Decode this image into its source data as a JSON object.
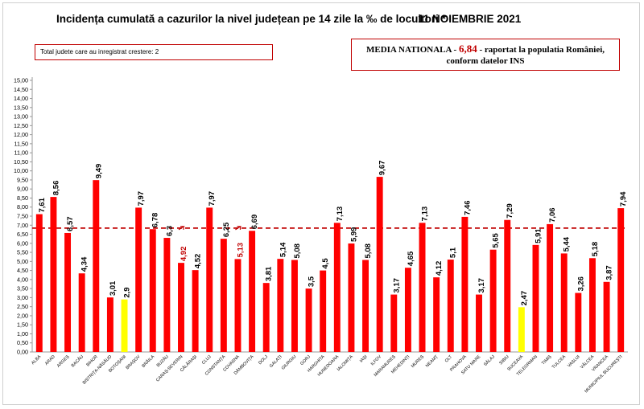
{
  "header": {
    "title": "Incidența cumulată a cazurilor la nivel județean pe 14 zile la ‰ de locuitori *",
    "date": "11 NOIEMBRIE 2021"
  },
  "growth_box": {
    "text": "Total judete care au inregistrat crestere: 2"
  },
  "media_box": {
    "prefix": "MEDIA NATIONALA -",
    "value": "6,84",
    "suffix": "- raportat la populatia României,",
    "line2": "conform datelor INS"
  },
  "colors": {
    "bar": "#ff0000",
    "highlight_bar": "#ffff00",
    "growth_label": "#c00000",
    "reference_line": "#c00000"
  },
  "chart_data": {
    "type": "bar",
    "ylim": [
      0,
      15
    ],
    "ytick_step": 0.5,
    "grid": false,
    "reference_line": 6.84,
    "categories": [
      "ALBA",
      "ARAD",
      "ARGEȘ",
      "BACĂU",
      "BIHOR",
      "BISTRIȚA-NĂSĂUD",
      "BOTOȘANI",
      "BRAȘOV",
      "BRĂILA",
      "BUZĂU",
      "CARAȘ-SEVERIN",
      "CĂLĂRAȘI",
      "CLUJ",
      "CONSTANȚA",
      "COVASNA",
      "DÂMBOVIȚA",
      "DOLJ",
      "GALAȚI",
      "GIURGIU",
      "GORJ",
      "HARGHITA",
      "HUNEDOARA",
      "IALOMIȚA",
      "IAȘI",
      "ILFOV",
      "MARAMUREȘ",
      "MEHEDINȚI",
      "MUREȘ",
      "NEAMȚ",
      "OLT",
      "PRAHOVA",
      "SATU MARE",
      "SĂLAJ",
      "SIBIU",
      "SUCEAVA",
      "TELEORMAN",
      "TIMIȘ",
      "TULCEA",
      "VASLUI",
      "VÂLCEA",
      "VRANCEA",
      "MUNICIPIUL BUCUREȘTI"
    ],
    "values": [
      7.61,
      8.56,
      6.57,
      4.34,
      9.49,
      3.01,
      2.9,
      7.97,
      6.78,
      6.3,
      4.92,
      4.52,
      7.97,
      6.25,
      5.13,
      6.69,
      3.81,
      5.14,
      5.08,
      3.5,
      4.5,
      7.13,
      5.99,
      5.08,
      9.67,
      3.17,
      4.65,
      7.13,
      4.12,
      5.1,
      7.46,
      3.17,
      5.65,
      7.29,
      2.47,
      5.91,
      7.06,
      5.44,
      3.26,
      5.18,
      3.87,
      7.94
    ],
    "labels": [
      "7,61",
      "8,56",
      "6,57",
      "4,34",
      "9,49",
      "3,01",
      "2,9",
      "7,97",
      "6,78",
      "6,3",
      "4,92",
      "4,52",
      "7,97",
      "6,25",
      "5,13",
      "6,69",
      "3,81",
      "5,14",
      "5,08",
      "3,5",
      "4,5",
      "7,13",
      "5,99",
      "5,08",
      "9,67",
      "3,17",
      "4,65",
      "7,13",
      "4,12",
      "5,1",
      "7,46",
      "3,17",
      "5,65",
      "7,29",
      "2,47",
      "5,91",
      "7,06",
      "5,44",
      "3,26",
      "5,18",
      "3,87",
      "7,94"
    ],
    "highlight": [
      "BOTOȘANI",
      "SUCEAVA"
    ],
    "growth": [
      "CARAȘ-SEVERIN",
      "COVASNA"
    ]
  }
}
